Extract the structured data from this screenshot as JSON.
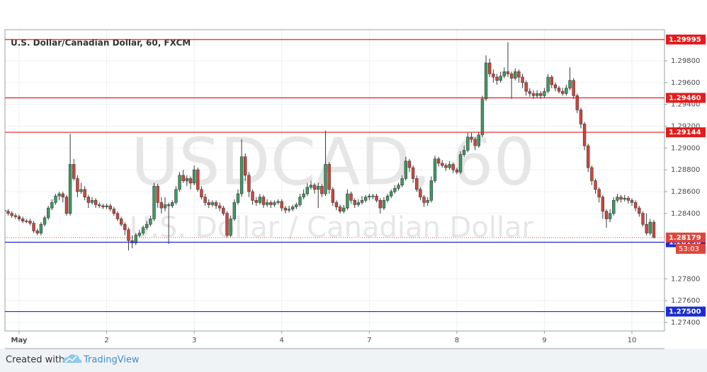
{
  "chart_data": {
    "type": "candlestick",
    "title": "U.S. Dollar/Canadian Dollar, 60, FXCM",
    "watermark": [
      "USDCAD, 60",
      "U.S. Dollar / Canadian Dollar"
    ],
    "up_color": "#3c9a62",
    "down_color": "#d0453b",
    "categories": [
      null,
      null,
      null,
      null,
      "May",
      null,
      null,
      null,
      null,
      null,
      null,
      null,
      null,
      null,
      null,
      null,
      null,
      null,
      null,
      null,
      null,
      null,
      null,
      null,
      null,
      null,
      null,
      null,
      "2",
      null,
      null,
      null,
      null,
      null,
      null,
      null,
      null,
      null,
      null,
      null,
      null,
      null,
      null,
      null,
      null,
      null,
      null,
      null,
      null,
      null,
      null,
      null,
      "3",
      null,
      null,
      null,
      null,
      null,
      null,
      null,
      null,
      null,
      null,
      null,
      null,
      null,
      null,
      null,
      null,
      null,
      null,
      null,
      null,
      null,
      null,
      null,
      "4",
      null,
      null,
      null,
      null,
      null,
      null,
      null,
      null,
      null,
      null,
      null,
      null,
      null,
      null,
      null,
      null,
      null,
      null,
      null,
      null,
      null,
      null,
      null,
      "7",
      null,
      null,
      null,
      null,
      null,
      null,
      null,
      null,
      null,
      null,
      null,
      null,
      null,
      null,
      null,
      null,
      null,
      null,
      null,
      null,
      null,
      null,
      null,
      "8",
      null,
      null,
      null,
      null,
      null,
      null,
      null,
      null,
      null,
      null,
      null,
      null,
      null,
      null,
      null,
      null,
      null,
      null,
      null,
      null,
      null,
      null,
      null,
      "9",
      null,
      null,
      null,
      null,
      null,
      null,
      null,
      null,
      null,
      null,
      null,
      null,
      null,
      null,
      null,
      null,
      null,
      null,
      null,
      null,
      null,
      null,
      null,
      "10",
      null,
      null,
      null,
      null,
      null,
      null
    ],
    "open": [
      1.2843,
      1.2842,
      1.284,
      1.2838,
      1.2837,
      1.2835,
      1.2833,
      1.2833,
      1.2831,
      1.2824,
      1.2822,
      1.283,
      1.2836,
      1.2845,
      1.285,
      1.2856,
      1.2858,
      1.2855,
      1.284,
      1.2885,
      1.2872,
      1.286,
      1.2862,
      1.2855,
      1.285,
      1.2852,
      1.2848,
      1.2847,
      1.2846,
      1.2847,
      1.2844,
      1.284,
      1.2835,
      1.283,
      1.2825,
      1.2815,
      1.2813,
      1.282,
      1.2822,
      1.2827,
      1.283,
      1.2835,
      1.2865,
      1.285,
      1.2845,
      1.2848,
      1.2847,
      1.285,
      1.2862,
      1.2875,
      1.287,
      1.2872,
      1.2868,
      1.288,
      1.2862,
      1.2855,
      1.285,
      1.2848,
      1.285,
      1.2847,
      1.2845,
      1.284,
      1.282,
      1.2835,
      1.285,
      1.2858,
      1.2892,
      1.2875,
      1.286,
      1.2852,
      1.285,
      1.2855,
      1.2848,
      1.285,
      1.2848,
      1.285,
      1.2851,
      1.2845,
      1.2843,
      1.2844,
      1.2846,
      1.2848,
      1.2855,
      1.2858,
      1.2864,
      1.2866,
      1.2862,
      1.2865,
      1.2858,
      1.2885,
      1.2862,
      1.285,
      1.2846,
      1.2842,
      1.2845,
      1.2858,
      1.2852,
      1.2848,
      1.285,
      1.2852,
      1.2855,
      1.2856,
      1.2856,
      1.2852,
      1.2845,
      1.2852,
      1.2856,
      1.286,
      1.2863,
      1.2866,
      1.2872,
      1.2888,
      1.2882,
      1.2872,
      1.2862,
      1.2855,
      1.285,
      1.2852,
      1.287,
      1.289,
      1.2886,
      1.2884,
      1.2882,
      1.2885,
      1.288,
      1.2878,
      1.2894,
      1.2898,
      1.291,
      1.2908,
      1.2902,
      1.2912,
      1.2945,
      1.2978,
      1.2968,
      1.2965,
      1.2962,
      1.2966,
      1.297,
      1.2968,
      1.2964,
      1.297,
      1.2965,
      1.296,
      1.2952,
      1.295,
      1.2948,
      1.295,
      1.2948,
      1.2952,
      1.2965,
      1.2958,
      1.2955,
      1.2952,
      1.295,
      1.2955,
      1.2962,
      1.2948,
      1.2935,
      1.2922,
      1.2902,
      1.2882,
      1.287,
      1.2862,
      1.2855,
      1.2842,
      1.2835,
      1.284,
      1.2852,
      1.2855,
      1.2853,
      1.2854,
      1.2852,
      1.285,
      1.2845,
      1.284,
      1.283,
      1.2822,
      1.2832
    ],
    "high": [
      1.2845,
      1.2844,
      1.2842,
      1.284,
      1.2839,
      1.2837,
      1.2835,
      1.2835,
      1.2833,
      1.2826,
      1.2832,
      1.2838,
      1.2847,
      1.2853,
      1.2858,
      1.286,
      1.286,
      1.2857,
      1.2913,
      1.289,
      1.2875,
      1.2868,
      1.2865,
      1.2857,
      1.2855,
      1.2854,
      1.285,
      1.2849,
      1.2849,
      1.2849,
      1.2846,
      1.2842,
      1.2837,
      1.2832,
      1.2827,
      1.282,
      1.2822,
      1.2825,
      1.2829,
      1.2833,
      1.2838,
      1.2868,
      1.2867,
      1.2855,
      1.2855,
      1.285,
      1.2852,
      1.2865,
      1.2878,
      1.288,
      1.2875,
      1.2874,
      1.2884,
      1.2882,
      1.2865,
      1.2858,
      1.2853,
      1.2852,
      1.2852,
      1.285,
      1.2847,
      1.2842,
      1.2838,
      1.2853,
      1.2862,
      1.2908,
      1.2895,
      1.2878,
      1.2862,
      1.2855,
      1.2858,
      1.2857,
      1.2853,
      1.2852,
      1.2852,
      1.2853,
      1.2853,
      1.2847,
      1.2847,
      1.2848,
      1.285,
      1.2858,
      1.2862,
      1.2868,
      1.287,
      1.2868,
      1.2868,
      1.2867,
      1.2916,
      1.2887,
      1.2864,
      1.2852,
      1.2848,
      1.2848,
      1.2862,
      1.286,
      1.2854,
      1.2853,
      1.2856,
      1.2857,
      1.2858,
      1.2858,
      1.2858,
      1.2854,
      1.2855,
      1.2858,
      1.2862,
      1.2866,
      1.2868,
      1.2875,
      1.2892,
      1.289,
      1.2884,
      1.2875,
      1.2864,
      1.2857,
      1.2855,
      1.2874,
      1.2893,
      1.2892,
      1.2889,
      1.2886,
      1.2888,
      1.2887,
      1.2882,
      1.2897,
      1.2902,
      1.2914,
      1.2914,
      1.291,
      1.2915,
      1.2948,
      1.2985,
      1.2982,
      1.2972,
      1.2968,
      1.297,
      1.2974,
      1.2997,
      1.297,
      1.2973,
      1.2972,
      1.2968,
      1.2962,
      1.2955,
      1.2953,
      1.2953,
      1.2952,
      1.2955,
      1.2968,
      1.2967,
      1.296,
      1.2957,
      1.2955,
      1.2958,
      1.2974,
      1.2964,
      1.295,
      1.2937,
      1.2924,
      1.2904,
      1.2884,
      1.2872,
      1.2864,
      1.2857,
      1.2844,
      1.2844,
      1.2855,
      1.2858,
      1.2857,
      1.2857,
      1.2856,
      1.2854,
      1.2852,
      1.2847,
      1.2842,
      1.284,
      1.2835,
      1.2834
    ],
    "low": [
      1.284,
      1.2838,
      1.2836,
      1.2835,
      1.2833,
      1.2831,
      1.2831,
      1.2829,
      1.2822,
      1.282,
      1.282,
      1.2828,
      1.2834,
      1.2843,
      1.2848,
      1.2852,
      1.285,
      1.2838,
      1.2838,
      1.287,
      1.2855,
      1.2858,
      1.2852,
      1.2845,
      1.2848,
      1.2845,
      1.2845,
      1.2844,
      1.2844,
      1.2842,
      1.2838,
      1.2833,
      1.2828,
      1.282,
      1.2806,
      1.2808,
      1.2811,
      1.2818,
      1.282,
      1.2825,
      1.2828,
      1.2833,
      1.2845,
      1.284,
      1.2842,
      1.2812,
      1.2845,
      1.2848,
      1.286,
      1.2868,
      1.2865,
      1.2862,
      1.2866,
      1.286,
      1.2853,
      1.2847,
      1.2845,
      1.2846,
      1.2844,
      1.2842,
      1.2838,
      1.2818,
      1.2818,
      1.2833,
      1.2848,
      1.2855,
      1.287,
      1.2855,
      1.2848,
      1.2847,
      1.2848,
      1.2845,
      1.2846,
      1.2845,
      1.2846,
      1.2848,
      1.2842,
      1.284,
      1.2841,
      1.2842,
      1.2844,
      1.2846,
      1.2853,
      1.2856,
      1.2862,
      1.2858,
      1.2845,
      1.2855,
      1.2856,
      1.2858,
      1.2847,
      1.2843,
      1.284,
      1.284,
      1.2843,
      1.2849,
      1.2845,
      1.2846,
      1.2848,
      1.285,
      1.2852,
      1.2853,
      1.285,
      1.284,
      1.2843,
      1.285,
      1.2854,
      1.2858,
      1.2861,
      1.2864,
      1.287,
      1.2878,
      1.2868,
      1.286,
      1.2852,
      1.2846,
      1.2847,
      1.285,
      1.2868,
      1.2883,
      1.2882,
      1.2879,
      1.288,
      1.2877,
      1.2876,
      1.2876,
      1.2892,
      1.2896,
      1.2905,
      1.2898,
      1.29,
      1.291,
      1.2943,
      1.2965,
      1.296,
      1.2958,
      1.296,
      1.2964,
      1.2965,
      1.2945,
      1.2962,
      1.296,
      1.2955,
      1.2948,
      1.2947,
      1.2945,
      1.2946,
      1.2945,
      1.2946,
      1.295,
      1.2955,
      1.2952,
      1.295,
      1.2948,
      1.2948,
      1.2953,
      1.2945,
      1.2932,
      1.2918,
      1.2898,
      1.2878,
      1.2866,
      1.2858,
      1.285,
      1.2835,
      1.2827,
      1.2832,
      1.2838,
      1.285,
      1.285,
      1.2851,
      1.2849,
      1.2847,
      1.2842,
      1.2837,
      1.2828,
      1.282,
      1.282,
      1.2817
    ],
    "close": [
      1.2842,
      1.284,
      1.2838,
      1.2837,
      1.2835,
      1.2833,
      1.2833,
      1.2831,
      1.2824,
      1.2822,
      1.283,
      1.2836,
      1.2845,
      1.285,
      1.2856,
      1.2858,
      1.2855,
      1.284,
      1.2885,
      1.2872,
      1.286,
      1.2862,
      1.2855,
      1.285,
      1.2852,
      1.2848,
      1.2847,
      1.2846,
      1.2847,
      1.2844,
      1.284,
      1.2835,
      1.283,
      1.2825,
      1.2815,
      1.2813,
      1.282,
      1.2822,
      1.2827,
      1.283,
      1.2835,
      1.2865,
      1.285,
      1.2845,
      1.2848,
      1.2847,
      1.285,
      1.2862,
      1.2875,
      1.287,
      1.2872,
      1.2868,
      1.288,
      1.2862,
      1.2855,
      1.285,
      1.2848,
      1.285,
      1.2847,
      1.2845,
      1.284,
      1.282,
      1.2835,
      1.285,
      1.2858,
      1.2892,
      1.2875,
      1.286,
      1.2852,
      1.285,
      1.2855,
      1.2848,
      1.285,
      1.2848,
      1.285,
      1.2851,
      1.2845,
      1.2843,
      1.2844,
      1.2846,
      1.2848,
      1.2855,
      1.2858,
      1.2864,
      1.2866,
      1.2862,
      1.2865,
      1.2858,
      1.2885,
      1.2862,
      1.285,
      1.2846,
      1.2842,
      1.2845,
      1.2858,
      1.2852,
      1.2848,
      1.285,
      1.2852,
      1.2855,
      1.2856,
      1.2856,
      1.2852,
      1.2845,
      1.2852,
      1.2856,
      1.286,
      1.2863,
      1.2866,
      1.2872,
      1.2888,
      1.2882,
      1.2872,
      1.2862,
      1.2855,
      1.285,
      1.2852,
      1.287,
      1.289,
      1.2886,
      1.2884,
      1.2882,
      1.2885,
      1.288,
      1.2878,
      1.2894,
      1.2898,
      1.291,
      1.2908,
      1.2902,
      1.2912,
      1.2945,
      1.2978,
      1.2968,
      1.2965,
      1.2962,
      1.2966,
      1.297,
      1.2968,
      1.2964,
      1.297,
      1.2965,
      1.296,
      1.2952,
      1.295,
      1.2948,
      1.295,
      1.2948,
      1.2952,
      1.2965,
      1.2958,
      1.2955,
      1.2952,
      1.295,
      1.2955,
      1.2962,
      1.2948,
      1.2935,
      1.2922,
      1.2902,
      1.2882,
      1.287,
      1.2862,
      1.2855,
      1.2842,
      1.2835,
      1.284,
      1.2852,
      1.2855,
      1.2853,
      1.2854,
      1.2852,
      1.285,
      1.2845,
      1.284,
      1.283,
      1.2822,
      1.2832,
      1.28179
    ],
    "ylim": [
      1.27322,
      1.30085
    ],
    "yticks": [
      {
        "value": 1.274,
        "label": "1.27400"
      },
      {
        "value": 1.276,
        "label": "1.27600"
      },
      {
        "value": 1.278,
        "label": "1.27800"
      },
      {
        "value": 1.284,
        "label": "1.28400"
      },
      {
        "value": 1.286,
        "label": "1.28600"
      },
      {
        "value": 1.288,
        "label": "1.28800"
      },
      {
        "value": 1.29,
        "label": "1.29000"
      },
      {
        "value": 1.292,
        "label": "1.29200"
      },
      {
        "value": 1.294,
        "label": "1.29400"
      },
      {
        "value": 1.296,
        "label": "1.29600"
      },
      {
        "value": 1.298,
        "label": "1.29800"
      }
    ],
    "grid": true,
    "levels": [
      {
        "value": 1.29995,
        "color": "#e31c1c"
      },
      {
        "value": 1.2946,
        "label": "1.29460",
        "color": "#e31c1c"
      },
      {
        "value": 1.29144,
        "color": "#e31c1c"
      },
      {
        "value": 1.28136,
        "color": "#1c2bd0"
      },
      {
        "value": 1.275,
        "label": "1.27500",
        "color": "#1c2bd0"
      }
    ],
    "last_color": "#e0453b",
    "countdown": "53:03"
  },
  "footer": {
    "text": "Created with",
    "brand": "TradingView"
  }
}
